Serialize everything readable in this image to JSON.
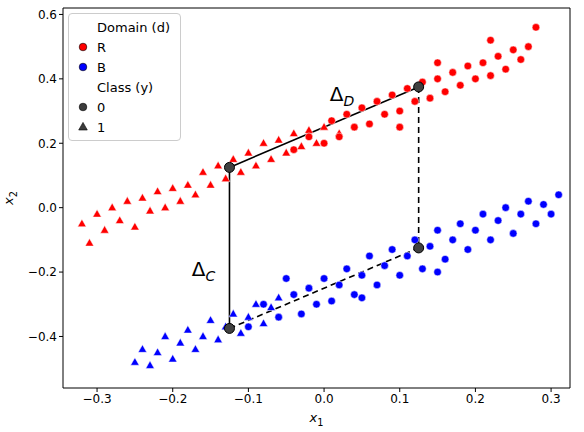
{
  "chart_data": {
    "type": "scatter",
    "x_label": {
      "text": "x",
      "subscript": "1"
    },
    "y_label": {
      "text": "x",
      "subscript": "2"
    },
    "xlim": [
      -0.345,
      0.325
    ],
    "ylim": [
      -0.56,
      0.62
    ],
    "xticks": [
      {
        "value": -0.3,
        "label": "−0.3"
      },
      {
        "value": -0.2,
        "label": "−0.2"
      },
      {
        "value": -0.1,
        "label": "−0.1"
      },
      {
        "value": 0,
        "label": "0.0"
      },
      0.1,
      0.2,
      0.3
    ],
    "yticks": [
      {
        "value": -0.4,
        "label": "−0.4"
      },
      {
        "value": -0.2,
        "label": "−0.2"
      },
      {
        "value": 0,
        "label": "0.0"
      },
      0.2,
      0.4,
      0.6
    ],
    "grid": false,
    "legend": "upper left",
    "legend_groups": [
      {
        "title": "Domain (d)",
        "entries": [
          {
            "label": "R",
            "color": "#ff0000",
            "marker": "circle"
          },
          {
            "label": "B",
            "color": "#0000ff",
            "marker": "circle"
          }
        ]
      },
      {
        "title": "Class (y)",
        "entries": [
          {
            "label": "0",
            "marker": "circle"
          },
          {
            "label": "1",
            "marker": "triangle"
          }
        ]
      }
    ],
    "series": [
      {
        "domain": "R",
        "class": "1",
        "color": "#ff0000",
        "marker": "triangle",
        "x": [
          -0.32,
          -0.31,
          -0.3,
          -0.29,
          -0.28,
          -0.27,
          -0.26,
          -0.25,
          -0.24,
          -0.23,
          -0.22,
          -0.21,
          -0.2,
          -0.19,
          -0.18,
          -0.17,
          -0.16,
          -0.15,
          -0.14,
          -0.13,
          -0.12,
          -0.11,
          -0.1,
          -0.09,
          -0.08,
          -0.07,
          -0.06,
          -0.05,
          -0.04,
          -0.03,
          -0.02,
          -0.01,
          0.0,
          0.02
        ],
        "y": [
          -0.05,
          -0.11,
          -0.02,
          -0.07,
          0.0,
          -0.04,
          0.02,
          -0.06,
          0.03,
          -0.01,
          0.05,
          0.0,
          0.06,
          0.02,
          0.07,
          0.04,
          0.11,
          0.07,
          0.13,
          0.09,
          0.15,
          0.11,
          0.17,
          0.13,
          0.2,
          0.15,
          0.21,
          0.17,
          0.23,
          0.19,
          0.24,
          0.2,
          0.25,
          0.23
        ]
      },
      {
        "domain": "R",
        "class": "0",
        "color": "#ff0000",
        "marker": "circle",
        "x": [
          -0.04,
          -0.02,
          0.0,
          0.01,
          0.02,
          0.03,
          0.04,
          0.05,
          0.06,
          0.07,
          0.08,
          0.09,
          0.1,
          0.11,
          0.12,
          0.13,
          0.14,
          0.15,
          0.16,
          0.17,
          0.18,
          0.19,
          0.2,
          0.21,
          0.22,
          0.23,
          0.24,
          0.25,
          0.26,
          0.27,
          0.28,
          0.22,
          0.15,
          0.1
        ],
        "y": [
          0.18,
          0.22,
          0.2,
          0.27,
          0.22,
          0.29,
          0.25,
          0.31,
          0.26,
          0.33,
          0.29,
          0.35,
          0.3,
          0.37,
          0.33,
          0.39,
          0.34,
          0.4,
          0.36,
          0.42,
          0.38,
          0.44,
          0.4,
          0.45,
          0.41,
          0.47,
          0.43,
          0.49,
          0.46,
          0.5,
          0.56,
          0.52,
          0.45,
          0.25
        ]
      },
      {
        "domain": "B",
        "class": "1",
        "color": "#0000ff",
        "marker": "triangle",
        "x": [
          -0.25,
          -0.24,
          -0.23,
          -0.22,
          -0.21,
          -0.2,
          -0.19,
          -0.18,
          -0.17,
          -0.16,
          -0.15,
          -0.14,
          -0.13,
          -0.12,
          -0.11,
          -0.1,
          -0.09,
          -0.08,
          -0.07,
          -0.06
        ],
        "y": [
          -0.48,
          -0.44,
          -0.49,
          -0.45,
          -0.4,
          -0.47,
          -0.42,
          -0.38,
          -0.44,
          -0.4,
          -0.35,
          -0.41,
          -0.37,
          -0.33,
          -0.39,
          -0.34,
          -0.3,
          -0.36,
          -0.31,
          -0.28
        ]
      },
      {
        "domain": "B",
        "class": "0",
        "color": "#0000ff",
        "marker": "circle",
        "x": [
          -0.1,
          -0.08,
          -0.06,
          -0.04,
          -0.03,
          -0.02,
          -0.01,
          0.0,
          0.01,
          0.02,
          0.03,
          0.04,
          0.05,
          0.06,
          0.07,
          0.08,
          0.09,
          0.1,
          0.11,
          0.12,
          0.13,
          0.14,
          0.15,
          0.16,
          0.17,
          0.18,
          0.19,
          0.2,
          0.21,
          0.22,
          0.23,
          0.24,
          0.25,
          0.26,
          0.27,
          0.28,
          0.29,
          0.3,
          0.31,
          0.05,
          0.15,
          -0.05
        ],
        "y": [
          -0.37,
          -0.3,
          -0.34,
          -0.27,
          -0.33,
          -0.25,
          -0.3,
          -0.22,
          -0.29,
          -0.24,
          -0.19,
          -0.27,
          -0.21,
          -0.15,
          -0.24,
          -0.18,
          -0.13,
          -0.21,
          -0.15,
          -0.1,
          -0.19,
          -0.12,
          -0.07,
          -0.16,
          -0.1,
          -0.05,
          -0.13,
          -0.07,
          -0.02,
          -0.1,
          -0.04,
          0.0,
          -0.08,
          -0.02,
          0.02,
          -0.05,
          0.01,
          -0.02,
          0.04,
          -0.28,
          -0.2,
          -0.22
        ]
      }
    ],
    "annotations": {
      "points": [
        {
          "x": -0.125,
          "y": 0.125
        },
        {
          "x": 0.125,
          "y": 0.375
        },
        {
          "x": -0.125,
          "y": -0.375
        },
        {
          "x": 0.125,
          "y": -0.125
        }
      ],
      "segments": [
        {
          "x": [
            -0.125,
            0.125
          ],
          "y": [
            0.125,
            0.375
          ],
          "line_style": "solid",
          "label": {
            "text": "Δ",
            "subscript": "D"
          }
        },
        {
          "x": [
            -0.125,
            -0.125
          ],
          "y": [
            0.125,
            -0.375
          ],
          "line_style": "solid",
          "label": {
            "text": "Δ",
            "subscript": "C"
          }
        },
        {
          "x": [
            0.125,
            0.125
          ],
          "y": [
            0.375,
            -0.125
          ],
          "line_style": "dashed"
        },
        {
          "x": [
            -0.125,
            0.125
          ],
          "y": [
            -0.375,
            -0.125
          ],
          "line_style": "dashed"
        }
      ]
    }
  }
}
